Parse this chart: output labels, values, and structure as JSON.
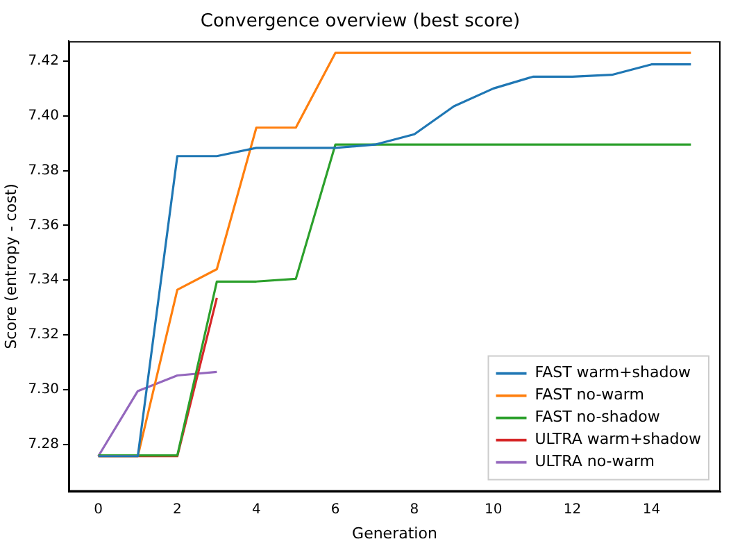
{
  "chart_data": {
    "type": "line",
    "title": "Convergence overview (best score)",
    "xlabel": "Generation",
    "ylabel": "Score (entropy - cost)",
    "xlim": [
      -0.75,
      15.75
    ],
    "xticks": [
      0,
      2,
      4,
      6,
      8,
      10,
      12,
      14
    ],
    "ylim": [
      7.2628,
      7.4273
    ],
    "yticks": [
      7.28,
      {
        "value": 7.3,
        "label": "7.30"
      },
      7.32,
      7.34,
      7.36,
      7.38,
      {
        "value": 7.4,
        "label": "7.40"
      },
      7.42
    ],
    "grid": false,
    "legend": "bottom right",
    "marker": "none",
    "line_style": "solid",
    "series": [
      {
        "name": "FAST warm+shadow",
        "color": "#1f77b4",
        "x": [
          0,
          1,
          2,
          3,
          4,
          5,
          6,
          7,
          8,
          9,
          10,
          11,
          12,
          13,
          14,
          15
        ],
        "values": [
          7.2757,
          7.2757,
          7.3853,
          7.3853,
          7.3883,
          7.3883,
          7.3883,
          7.3895,
          7.3933,
          7.4035,
          7.41,
          7.4143,
          7.4143,
          7.415,
          7.4188,
          7.4188
        ]
      },
      {
        "name": "FAST no-warm",
        "color": "#ff7f0e",
        "x": [
          0,
          1,
          2,
          3,
          4,
          5,
          6,
          7,
          8,
          9,
          10,
          11,
          12,
          13,
          14,
          15
        ],
        "values": [
          7.2757,
          7.2757,
          7.3365,
          7.344,
          7.3957,
          7.3957,
          7.423,
          7.423,
          7.423,
          7.423,
          7.423,
          7.423,
          7.423,
          7.423,
          7.423,
          7.423
        ]
      },
      {
        "name": "FAST no-shadow",
        "color": "#2ca02c",
        "x": [
          0,
          1,
          2,
          3,
          4,
          5,
          6,
          7,
          8,
          9,
          10,
          11,
          12,
          13,
          14,
          15
        ],
        "values": [
          7.276,
          7.276,
          7.276,
          7.3395,
          7.3395,
          7.3405,
          7.3895,
          7.3895,
          7.3895,
          7.3895,
          7.3895,
          7.3895,
          7.3895,
          7.3895,
          7.3895,
          7.3895
        ]
      },
      {
        "name": "ULTRA warm+shadow",
        "color": "#d62728",
        "x": [
          0,
          1,
          2,
          3
        ],
        "values": [
          7.2757,
          7.2757,
          7.2757,
          7.3335
        ]
      },
      {
        "name": "ULTRA no-warm",
        "color": "#9467bd",
        "x": [
          0,
          1,
          2,
          3
        ],
        "values": [
          7.2757,
          7.2995,
          7.3052,
          7.3065
        ]
      }
    ]
  }
}
